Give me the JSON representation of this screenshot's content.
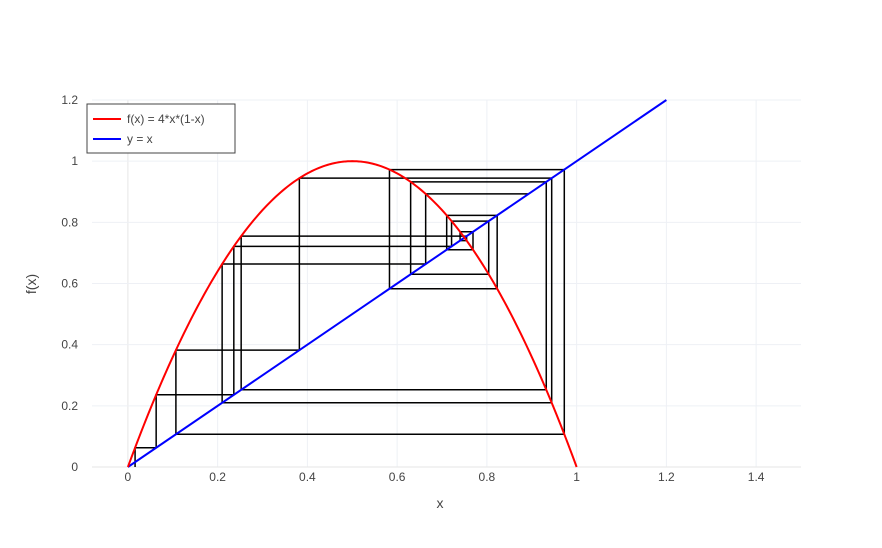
{
  "chart_data": {
    "type": "line",
    "title": "",
    "xlabel": "x",
    "ylabel": "f(x)",
    "xlim": [
      -0.08,
      1.5
    ],
    "ylim": [
      0,
      1.2
    ],
    "x_ticks": [
      0,
      0.2,
      0.4,
      0.6,
      0.8,
      1,
      1.2,
      1.4
    ],
    "x_tick_labels": [
      "0",
      "0.2",
      "0.4",
      "0.6",
      "0.8",
      "1",
      "1.2",
      "1.4"
    ],
    "y_ticks": [
      0,
      0.2,
      0.4,
      0.6,
      0.8,
      1,
      1.2
    ],
    "y_tick_labels": [
      "0",
      "0.2",
      "0.4",
      "0.6",
      "0.8",
      "1",
      "1.2"
    ],
    "grid": true,
    "legend_position": "top-left",
    "series": [
      {
        "name": "f(x) = 4*x*(1-x)",
        "color": "#ff0000",
        "function": "4*x*(1-x)",
        "x_range": [
          0,
          1
        ]
      },
      {
        "name": "y = x",
        "color": "#0000ff",
        "function": "x",
        "x_range": [
          0,
          1.2
        ]
      },
      {
        "name": "",
        "color": "#000000",
        "kind": "cobweb",
        "x0": 0.016,
        "iterations": 20
      }
    ]
  }
}
